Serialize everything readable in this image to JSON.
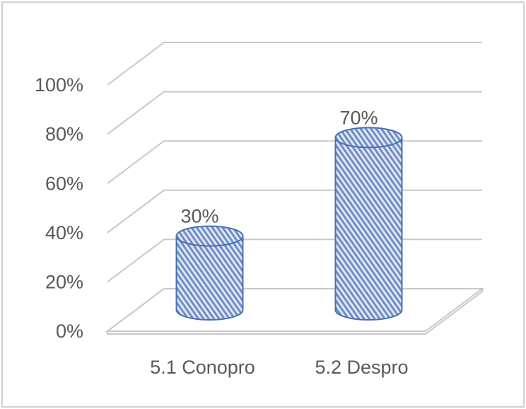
{
  "chart_data": {
    "type": "bar3d",
    "categories": [
      "5.1 Conopro",
      "5.2 Despro"
    ],
    "values": [
      30,
      70
    ],
    "value_labels": [
      "30%",
      "70%"
    ],
    "color": "#4a6fb3",
    "ylim": [
      0,
      100
    ],
    "yticks": [
      {
        "value": 0,
        "label": "0%"
      },
      {
        "value": 20,
        "label": "20%"
      },
      {
        "value": 40,
        "label": "40%"
      },
      {
        "value": 60,
        "label": "60%"
      },
      {
        "value": 80,
        "label": "80%"
      },
      {
        "value": 100,
        "label": "100%"
      }
    ],
    "grid": true
  }
}
